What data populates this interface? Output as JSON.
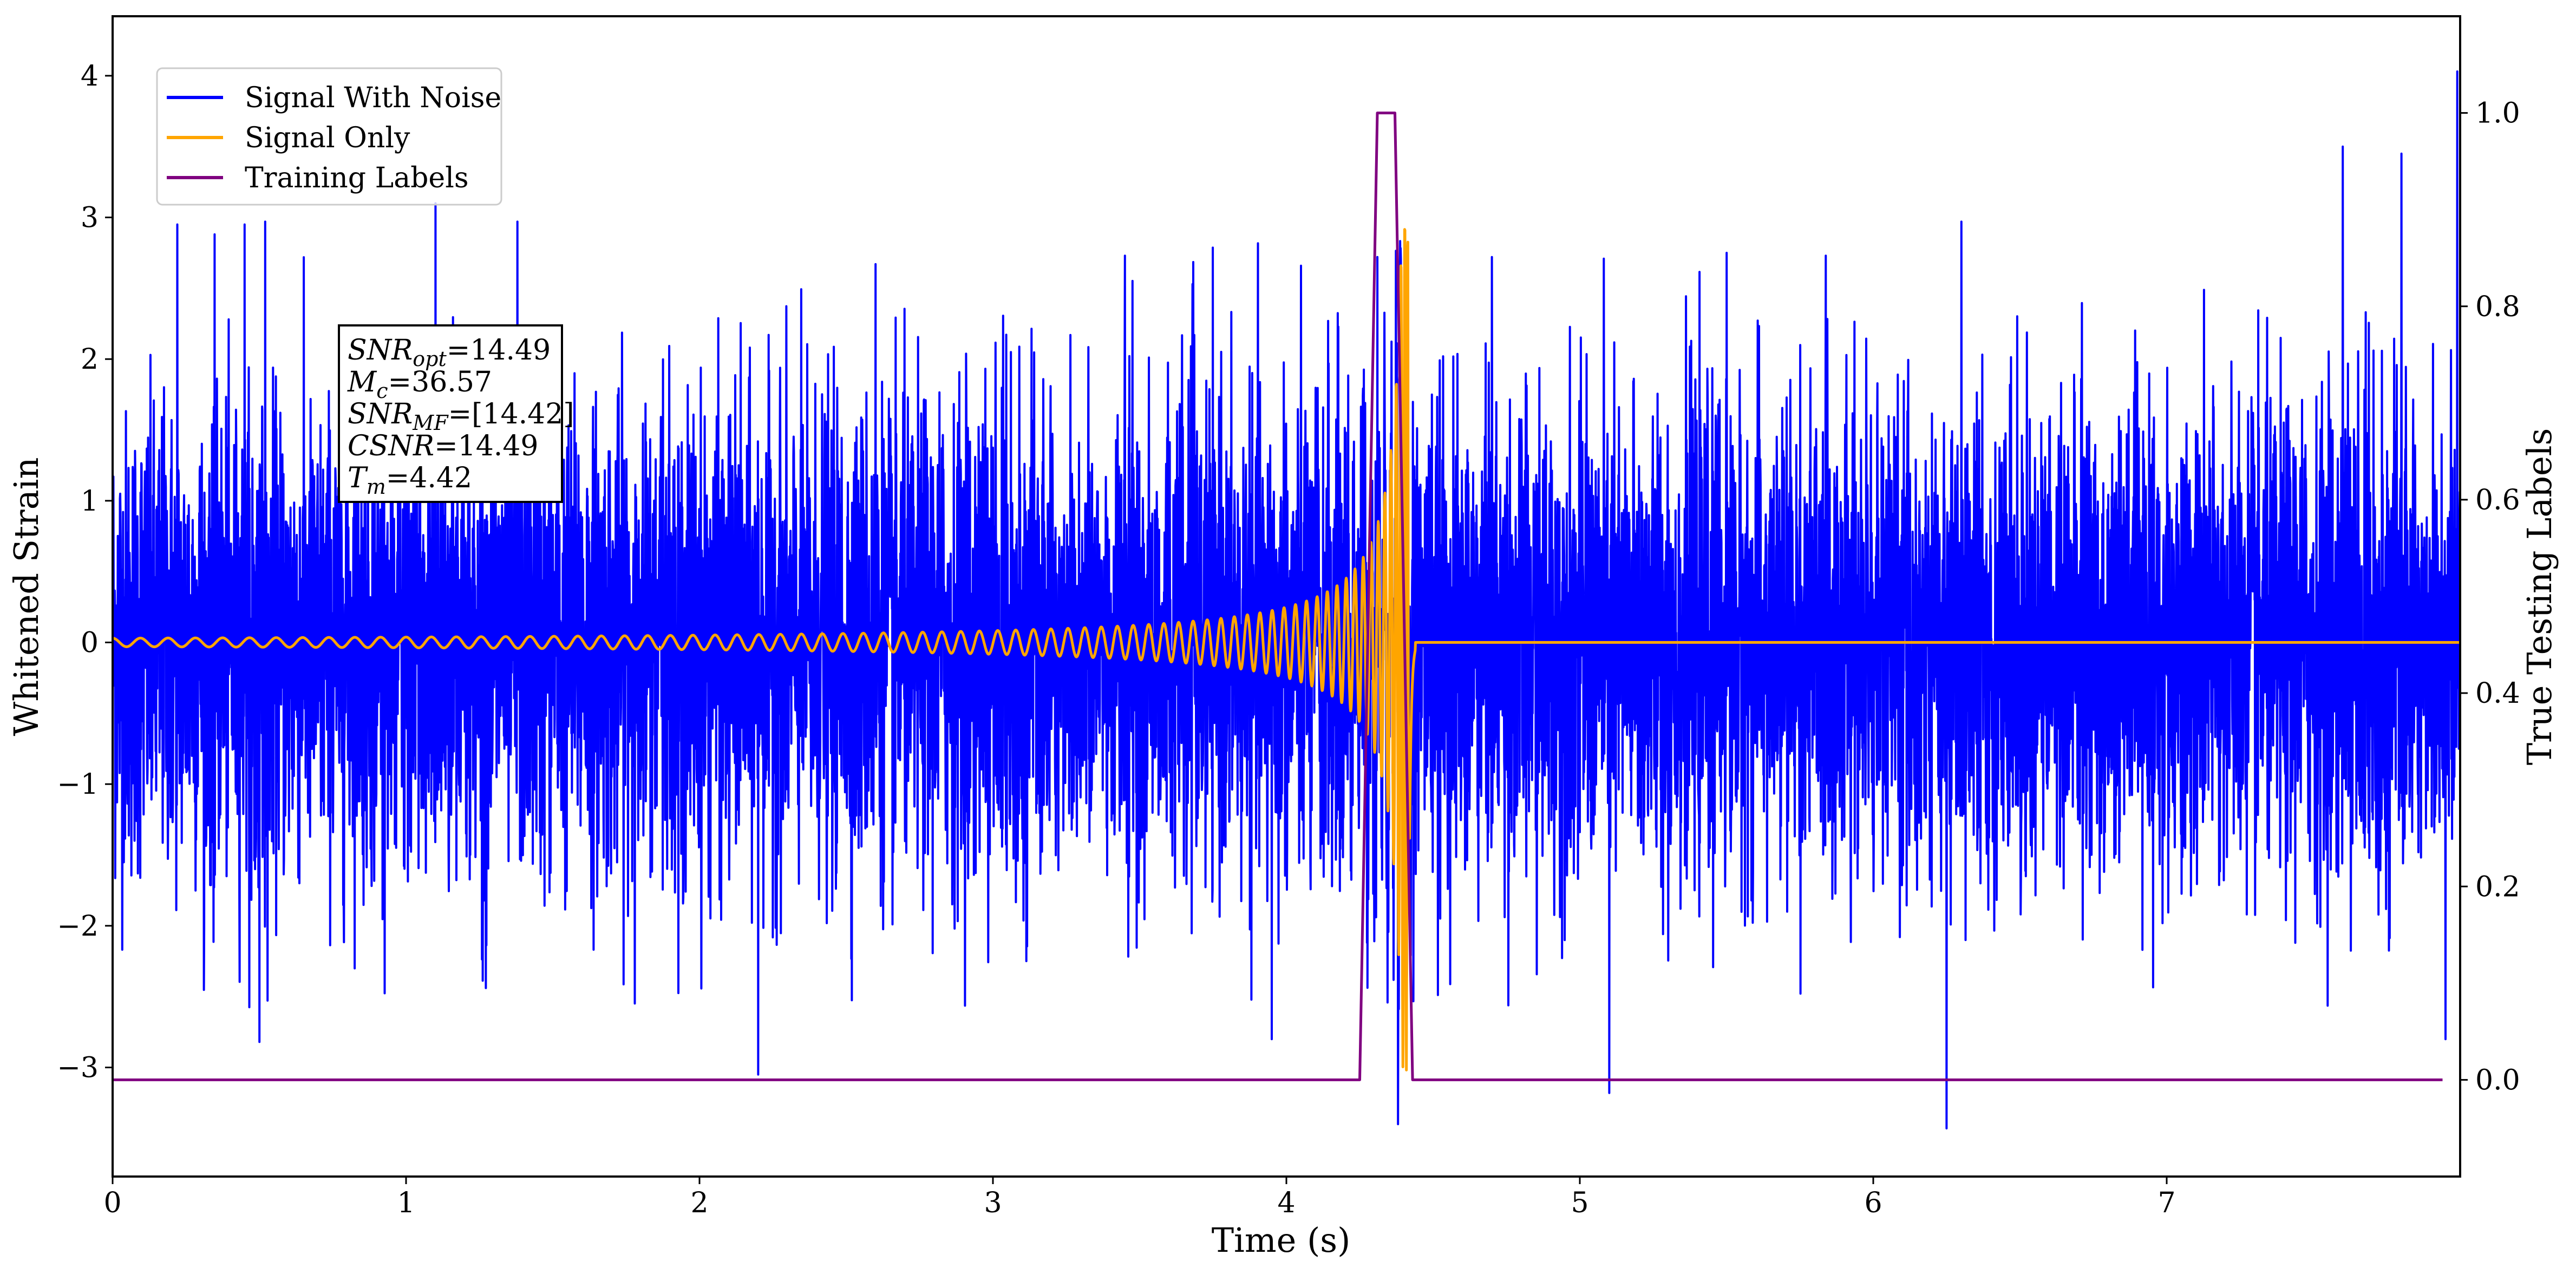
{
  "chart_data": {
    "type": "line",
    "xlabel": "Time (s)",
    "ylabel": "Whitened Strain",
    "y2label": "True Testing Labels",
    "xlim": [
      0,
      8.0
    ],
    "ylim": [
      -3.77,
      4.42
    ],
    "y2lim": [
      -0.1,
      1.1
    ],
    "x_ticks": [
      "0",
      "1",
      "2",
      "3",
      "4",
      "5",
      "6",
      "7"
    ],
    "y_ticks": [
      "−3",
      "−2",
      "−1",
      "0",
      "1",
      "2",
      "3",
      "4"
    ],
    "y2_ticks": [
      "0.0",
      "0.2",
      "0.4",
      "0.6",
      "0.8",
      "1.0"
    ],
    "grid": false,
    "legend_position": "top-left",
    "series": [
      {
        "name": "Signal With Noise",
        "color": "#0000ff",
        "axis": "left",
        "kind": "gaussian-noise",
        "std": 0.82,
        "min": -3.43,
        "max": 4.03,
        "duration": 8.0,
        "spikes": [
          {
            "t": 0.22,
            "y": 2.95
          },
          {
            "t": 0.45,
            "y": 2.95
          },
          {
            "t": 0.52,
            "y": 2.97
          },
          {
            "t": 0.5,
            "y": -2.82
          },
          {
            "t": 1.1,
            "y": 3.1
          },
          {
            "t": 1.38,
            "y": 2.97
          },
          {
            "t": 2.2,
            "y": -3.05
          },
          {
            "t": 2.6,
            "y": 2.67
          },
          {
            "t": 3.45,
            "y": 2.73
          },
          {
            "t": 3.95,
            "y": -2.8
          },
          {
            "t": 4.31,
            "y": 2.72
          },
          {
            "t": 4.38,
            "y": -3.4
          },
          {
            "t": 4.7,
            "y": 2.72
          },
          {
            "t": 5.1,
            "y": -3.18
          },
          {
            "t": 5.5,
            "y": 2.75
          },
          {
            "t": 6.25,
            "y": -3.43
          },
          {
            "t": 6.3,
            "y": 2.97
          },
          {
            "t": 7.6,
            "y": 3.5
          },
          {
            "t": 7.8,
            "y": 3.45
          },
          {
            "t": 7.95,
            "y": -2.8
          },
          {
            "t": 7.99,
            "y": 4.03
          }
        ]
      },
      {
        "name": "Signal Only",
        "color": "#ffa500",
        "axis": "left",
        "kind": "chirp",
        "merger_time": 4.42,
        "start_amplitude": 0.03,
        "peak_amplitude": 3.02,
        "start_frequency_hz": 10.5
      },
      {
        "name": "Training Labels",
        "color": "#800080",
        "axis": "right",
        "kind": "step",
        "x": [
          0.0,
          4.25,
          4.31,
          4.37,
          4.43,
          7.94
        ],
        "y": [
          0.0,
          0.0,
          1.0,
          1.0,
          0.0,
          0.0
        ]
      }
    ],
    "annotation": [
      {
        "sym": "SNR",
        "sub": "opt",
        "val": "=14.49"
      },
      {
        "sym": "M",
        "sub": "c",
        "val": "=36.57"
      },
      {
        "sym": "SNR",
        "sub": "MF",
        "val": "=[14.42]"
      },
      {
        "sym": "CSNR",
        "sub": "",
        "val": "=14.49"
      },
      {
        "sym": "T",
        "sub": "m",
        "val": "=4.42"
      }
    ]
  }
}
